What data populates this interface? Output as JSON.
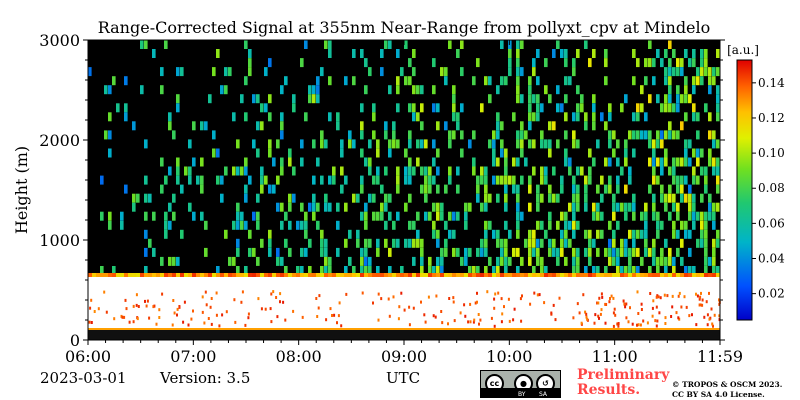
{
  "chart_data": {
    "type": "heatmap",
    "title": "Range-Corrected Signal at 355nm Near-Range from pollyxt_cpv at Mindelo",
    "xlabel": "",
    "ylabel": "Height (m)",
    "x_ticks": [
      "06:00",
      "07:00",
      "08:00",
      "09:00",
      "10:00",
      "11:00",
      "11:59"
    ],
    "y_ticks": [
      0,
      1000,
      2000,
      3000
    ],
    "ylim": [
      0,
      3000
    ],
    "colorbar": {
      "unit_label": "[a.u.]",
      "ticks": [
        0.02,
        0.04,
        0.06,
        0.08,
        0.1,
        0.12,
        0.14
      ],
      "tick_labels": [
        "0.02",
        "0.04",
        "0.06",
        "0.08",
        "0.10",
        "0.12",
        "0.14"
      ],
      "range": [
        0.005,
        0.153
      ],
      "colormap": "jet"
    },
    "layers": [
      {
        "feature": "near-surface saturated layer",
        "height_range_m": [
          0,
          120
        ]
      },
      {
        "feature": "saturated marine boundary layer (>0.15)",
        "height_range_m": [
          100,
          650
        ]
      },
      {
        "feature": "boundary layer top (orange/yellow edge)",
        "height_m": 650
      },
      {
        "feature": "noisy background signal",
        "height_range_m": [
          700,
          3000
        ]
      }
    ]
  },
  "footer": {
    "date": "2023-03-01",
    "version": "Version: 3.5",
    "timezone": "UTC",
    "license_badge": {
      "left": "cc",
      "by": "BY",
      "sa": "SA"
    },
    "preliminary_line1": "Preliminary",
    "preliminary_line2": "Results.",
    "copyright_line1": "© TROPOS & OSCM 2023.",
    "copyright_line2": "CC BY SA 4.0 License."
  }
}
